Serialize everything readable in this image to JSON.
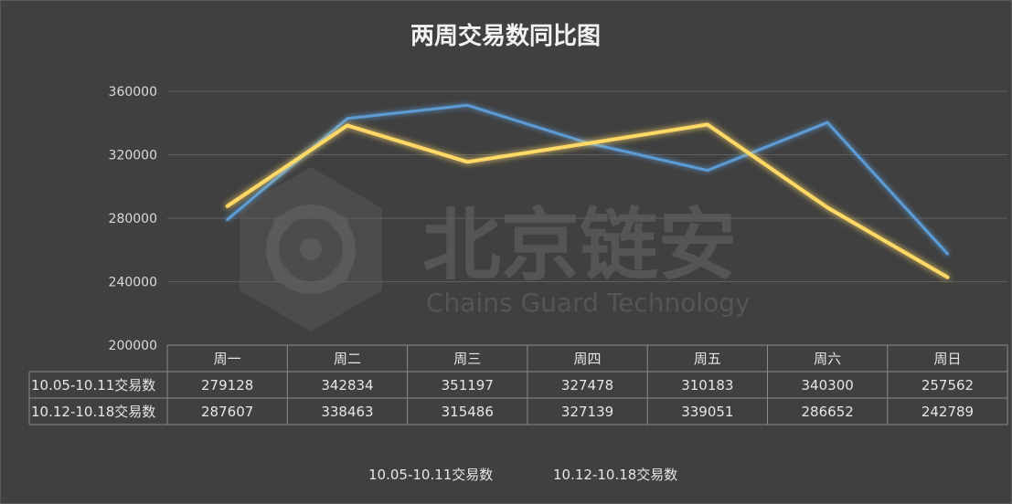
{
  "chart_data": {
    "type": "line",
    "title": "两周交易数同比图",
    "categories": [
      "周一",
      "周二",
      "周三",
      "周四",
      "周五",
      "周六",
      "周日"
    ],
    "ylim": [
      200000,
      360000
    ],
    "yticks": [
      "360000",
      "320000",
      "280000",
      "240000",
      "200000"
    ],
    "series": [
      {
        "name": "10.05-10.11交易数",
        "color": "#5b9bd5",
        "values": [
          279128,
          342834,
          351197,
          327478,
          310183,
          340300,
          257562
        ]
      },
      {
        "name": "10.12-10.18交易数",
        "color": "#ffd966",
        "values": [
          287607,
          338463,
          315486,
          327139,
          339051,
          286652,
          242789
        ]
      }
    ],
    "grid": true,
    "legend": "bottom",
    "data_table": true
  },
  "watermark": {
    "cn": "北京链安",
    "en": "Chains Guard Technology"
  }
}
